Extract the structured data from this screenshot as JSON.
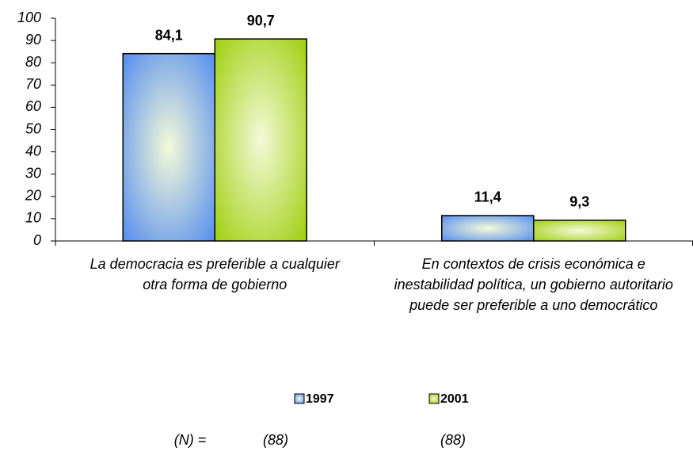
{
  "chart_data": {
    "type": "bar",
    "categories": [
      "La democracia es preferible a cualquier otra forma de gobierno",
      "En contextos de crisis económica e inestabilidad política, un gobierno autoritario puede ser preferible a uno democrático"
    ],
    "series": [
      {
        "name": "1997",
        "color": "#4a86f0",
        "values": [
          84.1,
          11.4
        ],
        "value_labels": [
          "84,1",
          "11,4"
        ]
      },
      {
        "name": "2001",
        "color": "#99cc00",
        "values": [
          90.7,
          9.3
        ],
        "value_labels": [
          "90,7",
          "9,3"
        ]
      }
    ],
    "ylim": [
      0,
      100
    ],
    "yticks": [
      0,
      10,
      20,
      30,
      40,
      50,
      60,
      70,
      80,
      90,
      100
    ],
    "legend": "bottom",
    "n_title": "(N) =",
    "n_labels": [
      "(88)",
      "(88)"
    ]
  }
}
